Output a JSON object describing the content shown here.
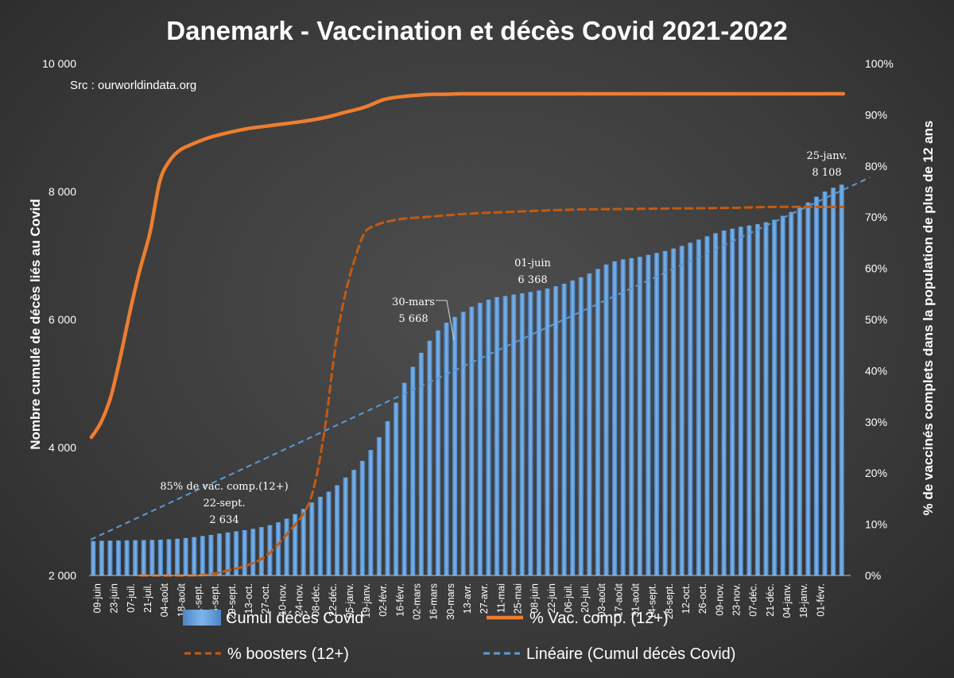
{
  "chart_data": {
    "type": "bar",
    "title": "Danemark  - Vaccination et décès Covid 2021-2022",
    "source_note": "Src : ourworldindata.org",
    "ylabel_left": "Nombre cumulé de décès liés au Covid",
    "ylabel_right": "% de vaccinés complets dans  la population de plus de 12 ans",
    "ylim_left": [
      2000,
      10000
    ],
    "ylim_right": [
      0,
      100
    ],
    "yticks_left": [
      "2 000",
      "4 000",
      "6 000",
      "8 000",
      "10 000"
    ],
    "yticks_right": [
      "0%",
      "10%",
      "20%",
      "30%",
      "40%",
      "50%",
      "60%",
      "70%",
      "80%",
      "90%",
      "100%"
    ],
    "x_labels": [
      "09-juin",
      "23-juin",
      "07-juil.",
      "21-juil.",
      "04-août",
      "18-août",
      "01-sept.",
      "15-sept.",
      "29-sept.",
      "13-oct.",
      "27-oct.",
      "10-nov.",
      "24-nov.",
      "08-déc.",
      "22-déc.",
      "05-janv.",
      "19-janv.",
      "02-févr.",
      "16-févr.",
      "02-mars",
      "16-mars",
      "30-mars",
      "13-avr.",
      "27-avr.",
      "11-mai",
      "25-mai",
      "08-juin",
      "22-juin",
      "06-juil.",
      "20-juil.",
      "03-août",
      "17-août",
      "31-août",
      "14-sept.",
      "28-sept.",
      "12-oct.",
      "26-oct.",
      "09-nov.",
      "23-nov.",
      "07-déc.",
      "21-déc.",
      "04-janv.",
      "18-janv.",
      "01-févr."
    ],
    "series": [
      {
        "name": "Cumul décès Covid",
        "type": "bar",
        "axis": "left",
        "color": "#5b9bd5",
        "values": [
          2537,
          2542,
          2545,
          2547,
          2549,
          2551,
          2553,
          2556,
          2560,
          2566,
          2574,
          2585,
          2600,
          2616,
          2634,
          2655,
          2672,
          2690,
          2708,
          2729,
          2755,
          2786,
          2830,
          2888,
          2960,
          3040,
          3140,
          3230,
          3310,
          3410,
          3530,
          3650,
          3790,
          3960,
          4160,
          4410,
          4700,
          5010,
          5260,
          5480,
          5668,
          5830,
          5950,
          6040,
          6120,
          6200,
          6260,
          6310,
          6350,
          6368,
          6390,
          6410,
          6430,
          6455,
          6485,
          6520,
          6560,
          6610,
          6660,
          6720,
          6790,
          6860,
          6910,
          6940,
          6960,
          6980,
          7010,
          7040,
          7070,
          7110,
          7150,
          7200,
          7250,
          7300,
          7350,
          7390,
          7420,
          7450,
          7470,
          7490,
          7520,
          7560,
          7620,
          7680,
          7750,
          7830,
          7920,
          8000,
          8060,
          8108
        ]
      },
      {
        "name": "% Vac. comp. (12+)",
        "type": "line",
        "axis": "right",
        "color": "#ed7d31",
        "x": [
          0,
          2,
          4,
          6,
          8,
          10,
          12,
          14,
          16,
          18,
          20,
          24,
          28,
          32,
          36,
          40,
          44,
          48,
          52,
          56,
          60,
          64,
          68,
          70,
          72,
          76,
          80,
          85,
          90,
          100,
          110,
          120,
          130,
          140,
          150,
          154
        ],
        "values": [
          27,
          30,
          35,
          43,
          52,
          60,
          67,
          77,
          81,
          83,
          84,
          85.5,
          86.5,
          87.3,
          87.8,
          88.3,
          88.8,
          89.5,
          90.5,
          91.5,
          93,
          93.6,
          93.9,
          94,
          94,
          94.1,
          94.1,
          94.1,
          94.1,
          94.1,
          94.1,
          94.1,
          94.1,
          94.1,
          94.1,
          94.1
        ]
      },
      {
        "name": "% boosters (12+)",
        "type": "line",
        "axis": "right",
        "color": "#c55a11",
        "dashed": true,
        "x": [
          10,
          20,
          24,
          28,
          32,
          36,
          40,
          44,
          46,
          48,
          50,
          52,
          54,
          56,
          58,
          60,
          62,
          64,
          68,
          72,
          76,
          80,
          90,
          100,
          110,
          120,
          130,
          140,
          150,
          154
        ],
        "values": [
          0,
          0,
          0.2,
          1,
          2,
          4,
          8,
          13,
          19,
          30,
          45,
          55,
          62,
          67,
          68.3,
          69,
          69.4,
          69.7,
          70,
          70.3,
          70.6,
          70.8,
          71.2,
          71.5,
          71.6,
          71.7,
          71.8,
          72,
          72,
          72
        ]
      },
      {
        "name": "Linéaire (Cumul décès Covid)",
        "type": "trendline",
        "axis": "left",
        "color": "#5b9bd5",
        "dashed": true,
        "start": 2560,
        "end": 8220
      }
    ],
    "annotations": [
      {
        "lines": [
          "85% de vac. comp.(12+)",
          "22-sept.",
          "2 634"
        ]
      },
      {
        "lines": [
          "30-mars",
          "5 668"
        ]
      },
      {
        "lines": [
          "01-juin",
          "6 368"
        ]
      },
      {
        "lines": [
          "25-janv.",
          "8 108"
        ]
      }
    ],
    "legend": {
      "placement": "bottom",
      "items": [
        {
          "label": "Cumul décès Covid",
          "kind": "bar",
          "color": "#5b9bd5"
        },
        {
          "label": "% Vac. comp. (12+)",
          "kind": "line",
          "color": "#ed7d31"
        },
        {
          "label": "% boosters (12+)",
          "kind": "dashed",
          "color": "#c55a11"
        },
        {
          "label": "Linéaire (Cumul décès Covid)",
          "kind": "dashed",
          "color": "#5b9bd5"
        }
      ]
    },
    "grid": false
  }
}
